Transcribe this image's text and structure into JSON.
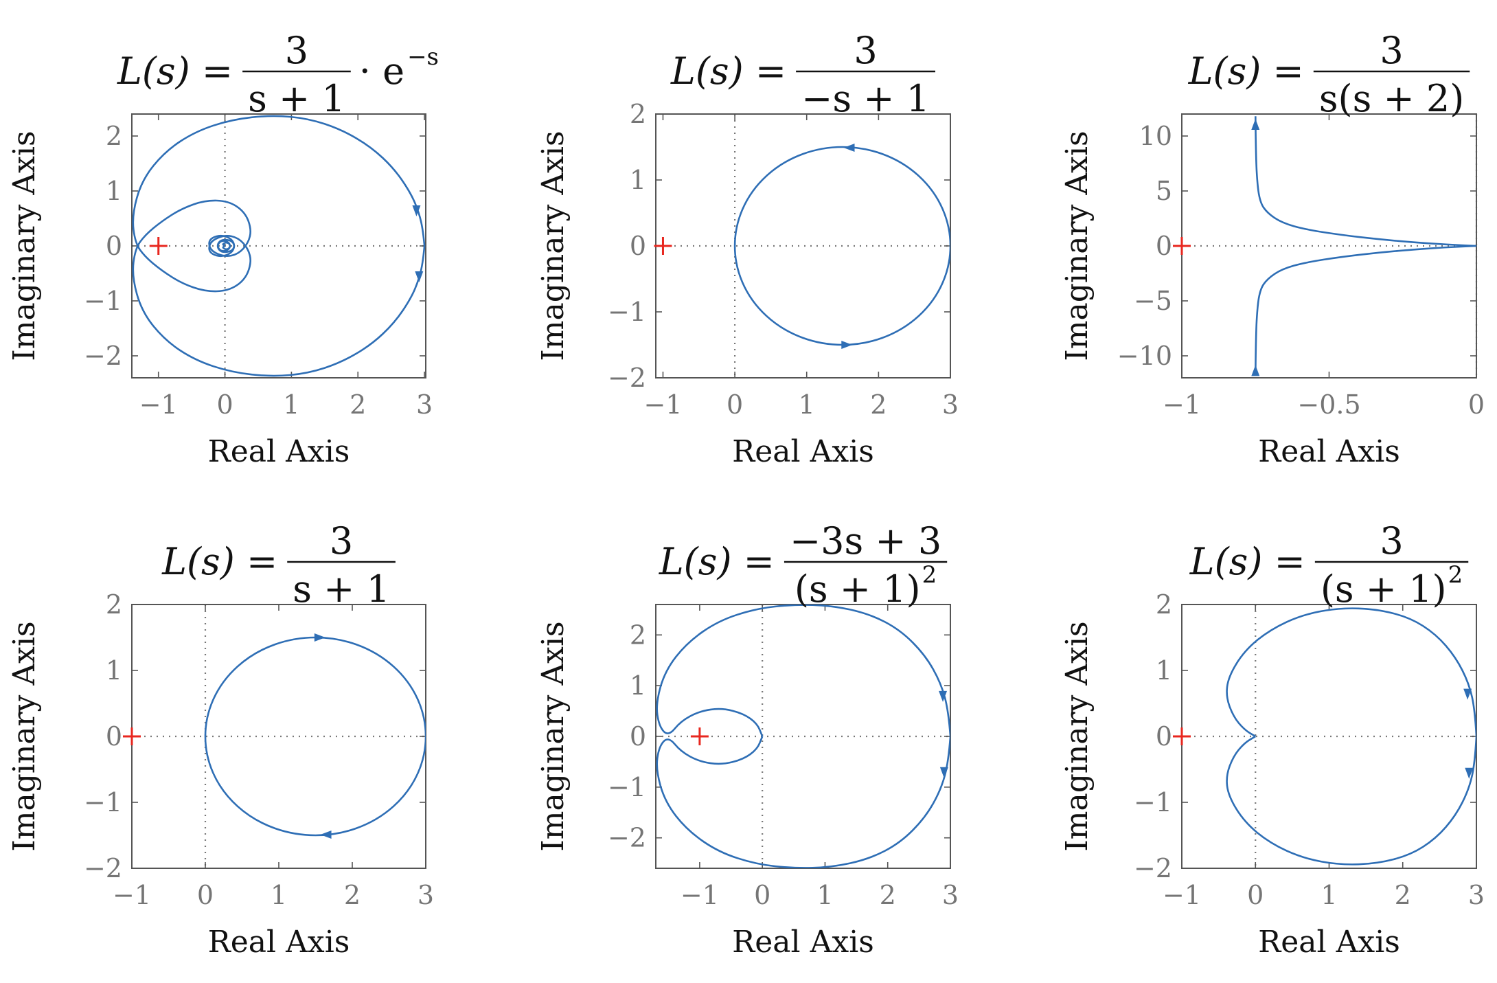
{
  "colors": {
    "curve": "#2e6eb5",
    "critical_point": "#e8271f",
    "axes": "#555555",
    "tick_text": "#757575",
    "reference_line": "#777777"
  },
  "labels": {
    "x": "Real Axis",
    "y": "Imaginary Axis"
  },
  "chart_data": [
    {
      "type": "line",
      "title": "L(s) = 3/(s+1) · e^{-s}",
      "title_parts": {
        "lhs": "L(s) =",
        "num": "3",
        "den": "s + 1",
        "suffix": "· e",
        "sup": "−s"
      },
      "xlabel": "Real Axis",
      "ylabel": "Imaginary Axis",
      "xlim": [
        -1.4,
        3.02
      ],
      "ylim": [
        -2.4,
        2.4
      ],
      "xticks": [
        -1,
        0,
        1,
        2,
        3
      ],
      "xtick_labels": [
        "−1",
        "0",
        "1",
        "2",
        "3"
      ],
      "yticks": [
        -2,
        -1,
        0,
        1,
        2
      ],
      "ytick_labels": [
        "−2",
        "−1",
        "0",
        "1",
        "2"
      ],
      "critical_point": [
        -1,
        0
      ],
      "series": [
        {
          "values": [
            [
              3,
              0
            ],
            [
              2.98,
              -0.28
            ],
            [
              2.92,
              -0.6
            ],
            [
              2.8,
              -0.95
            ],
            [
              2.55,
              -1.4
            ],
            [
              2.2,
              -1.8
            ],
            [
              1.75,
              -2.12
            ],
            [
              1.25,
              -2.32
            ],
            [
              0.7,
              -2.38
            ],
            [
              0.1,
              -2.3
            ],
            [
              -0.45,
              -2.08
            ],
            [
              -0.9,
              -1.72
            ],
            [
              -1.25,
              -1.2
            ],
            [
              -1.4,
              -0.55
            ],
            [
              -1.35,
              -0.05
            ],
            [
              -1.2,
              0.2
            ],
            [
              -0.95,
              0.45
            ],
            [
              -0.65,
              0.68
            ],
            [
              -0.3,
              0.83
            ],
            [
              0.05,
              0.82
            ],
            [
              0.3,
              0.62
            ],
            [
              0.4,
              0.3
            ],
            [
              0.35,
              0.05
            ],
            [
              0.2,
              -0.15
            ],
            [
              0.0,
              -0.2
            ],
            [
              -0.2,
              -0.1
            ],
            [
              -0.25,
              0.05
            ],
            [
              -0.2,
              0.15
            ],
            [
              -0.05,
              0.2
            ],
            [
              0.1,
              0.13
            ],
            [
              0.15,
              0.0
            ],
            [
              0.1,
              -0.1
            ],
            [
              -0.05,
              -0.12
            ],
            [
              -0.12,
              -0.02
            ],
            [
              -0.08,
              0.08
            ],
            [
              0.0,
              0.1
            ],
            [
              0.07,
              0.05
            ],
            [
              0.08,
              -0.03
            ],
            [
              0.02,
              -0.07
            ],
            [
              -0.04,
              -0.03
            ],
            [
              0.0,
              0.0
            ]
          ]
        },
        {
          "values": [
            [
              3,
              0
            ],
            [
              2.98,
              0.28
            ],
            [
              2.92,
              0.6
            ],
            [
              2.8,
              0.95
            ],
            [
              2.55,
              1.4
            ],
            [
              2.2,
              1.8
            ],
            [
              1.75,
              2.12
            ],
            [
              1.25,
              2.32
            ],
            [
              0.7,
              2.38
            ],
            [
              0.1,
              2.3
            ],
            [
              -0.45,
              2.08
            ],
            [
              -0.9,
              1.72
            ],
            [
              -1.25,
              1.2
            ],
            [
              -1.4,
              0.55
            ],
            [
              -1.35,
              0.05
            ],
            [
              -1.2,
              -0.2
            ],
            [
              -0.95,
              -0.45
            ],
            [
              -0.65,
              -0.68
            ],
            [
              -0.3,
              -0.83
            ],
            [
              0.05,
              -0.82
            ],
            [
              0.3,
              -0.62
            ],
            [
              0.4,
              -0.3
            ],
            [
              0.35,
              -0.05
            ],
            [
              0.2,
              0.15
            ],
            [
              0.0,
              0.2
            ],
            [
              -0.2,
              0.1
            ],
            [
              -0.25,
              -0.05
            ],
            [
              -0.2,
              -0.15
            ],
            [
              -0.05,
              -0.2
            ],
            [
              0.1,
              -0.13
            ],
            [
              0.15,
              0.0
            ],
            [
              0.1,
              0.1
            ],
            [
              -0.05,
              0.12
            ],
            [
              -0.12,
              0.02
            ],
            [
              -0.08,
              -0.08
            ],
            [
              0.0,
              -0.1
            ],
            [
              0.07,
              -0.05
            ],
            [
              0.08,
              0.03
            ],
            [
              0.02,
              0.07
            ],
            [
              -0.04,
              0.03
            ],
            [
              0.0,
              0.0
            ]
          ]
        }
      ],
      "arrows": [
        {
          "at": [
            2.88,
            0.65
          ],
          "dir": "down"
        },
        {
          "at": [
            2.92,
            -0.55
          ],
          "dir": "down"
        }
      ]
    },
    {
      "type": "line",
      "title": "L(s) = 3/(−s+1)",
      "title_parts": {
        "lhs": "L(s) =",
        "num": "3",
        "den": "−s + 1"
      },
      "xlabel": "Real Axis",
      "ylabel": "Imaginary Axis",
      "xlim": [
        -1.1,
        3.0
      ],
      "ylim": [
        -2,
        2
      ],
      "xticks": [
        -1,
        0,
        1,
        2,
        3
      ],
      "xtick_labels": [
        "−1",
        "0",
        "1",
        "2",
        "3"
      ],
      "yticks": [
        -2,
        -1,
        0,
        1,
        2
      ],
      "ytick_labels": [
        "−2",
        "−1",
        "0",
        "1",
        "2"
      ],
      "critical_point": [
        -1,
        0
      ],
      "series": [
        {
          "circle": {
            "center": [
              1.5,
              0
            ],
            "radius": 1.5
          }
        }
      ],
      "arrows": [
        {
          "at": [
            1.6,
            1.49
          ],
          "dir": "left"
        },
        {
          "at": [
            1.55,
            -1.5
          ],
          "dir": "right"
        }
      ]
    },
    {
      "type": "line",
      "title": "L(s) = 3/(s(s+2))",
      "title_parts": {
        "lhs": "L(s) =",
        "num": "3",
        "den": "s(s + 2)"
      },
      "xlabel": "Real Axis",
      "ylabel": "Imaginary Axis",
      "xlim": [
        -1,
        0
      ],
      "ylim": [
        -12,
        12
      ],
      "xticks": [
        -1,
        -0.5,
        0
      ],
      "xtick_labels": [
        "−1",
        "−0.5",
        "0"
      ],
      "yticks": [
        -10,
        -5,
        0,
        5,
        10
      ],
      "ytick_labels": [
        "−10",
        "−5",
        "0",
        "5",
        "10"
      ],
      "critical_point": [
        -1,
        0
      ],
      "series": [
        {
          "values": [
            [
              -0.75,
              11.8
            ],
            [
              -0.749,
              9.0
            ],
            [
              -0.745,
              6.0
            ],
            [
              -0.735,
              4.0
            ],
            [
              -0.71,
              3.0
            ],
            [
              -0.66,
              2.1
            ],
            [
              -0.58,
              1.5
            ],
            [
              -0.46,
              1.0
            ],
            [
              -0.33,
              0.6
            ],
            [
              -0.2,
              0.3
            ],
            [
              -0.1,
              0.12
            ],
            [
              0,
              0
            ]
          ]
        },
        {
          "values": [
            [
              -0.75,
              -11.8
            ],
            [
              -0.749,
              -9.0
            ],
            [
              -0.745,
              -6.0
            ],
            [
              -0.735,
              -4.0
            ],
            [
              -0.71,
              -3.0
            ],
            [
              -0.66,
              -2.1
            ],
            [
              -0.58,
              -1.5
            ],
            [
              -0.46,
              -1.0
            ],
            [
              -0.33,
              -0.6
            ],
            [
              -0.2,
              -0.3
            ],
            [
              -0.1,
              -0.12
            ],
            [
              0,
              0
            ]
          ]
        }
      ],
      "arrows": [
        {
          "at": [
            -0.75,
            11.0
          ],
          "dir": "up"
        },
        {
          "at": [
            -0.75,
            -11.4
          ],
          "dir": "up"
        }
      ]
    },
    {
      "type": "line",
      "title": "L(s) = 3/(s+1)",
      "title_parts": {
        "lhs": "L(s) =",
        "num": "3",
        "den": "s + 1"
      },
      "xlabel": "Real Axis",
      "ylabel": "Imaginary Axis",
      "xlim": [
        -1,
        3
      ],
      "ylim": [
        -2,
        2
      ],
      "xticks": [
        -1,
        0,
        1,
        2,
        3
      ],
      "xtick_labels": [
        "−1",
        "0",
        "1",
        "2",
        "3"
      ],
      "yticks": [
        -2,
        -1,
        0,
        1,
        2
      ],
      "ytick_labels": [
        "−2",
        "−1",
        "0",
        "1",
        "2"
      ],
      "critical_point": [
        -1,
        0
      ],
      "series": [
        {
          "circle": {
            "center": [
              1.5,
              0
            ],
            "radius": 1.5
          }
        }
      ],
      "arrows": [
        {
          "at": [
            1.55,
            1.5
          ],
          "dir": "right"
        },
        {
          "at": [
            1.65,
            -1.49
          ],
          "dir": "left"
        }
      ]
    },
    {
      "type": "line",
      "title": "L(s) = (−3s+3)/(s+1)^2",
      "title_parts": {
        "lhs": "L(s) =",
        "num": "−3s + 3",
        "den": "(s + 1)",
        "den_sup": "2"
      },
      "xlabel": "Real Axis",
      "ylabel": "Imaginary Axis",
      "xlim": [
        -1.7,
        3.0
      ],
      "ylim": [
        -2.6,
        2.6
      ],
      "xticks": [
        -1,
        0,
        1,
        2,
        3
      ],
      "xtick_labels": [
        "−1",
        "0",
        "1",
        "2",
        "3"
      ],
      "yticks": [
        -2,
        -1,
        0,
        1,
        2
      ],
      "ytick_labels": [
        "−2",
        "−1",
        "0",
        "1",
        "2"
      ],
      "critical_point": [
        -1,
        0
      ],
      "series": [
        {
          "values": [
            [
              3,
              0
            ],
            [
              2.97,
              0.5
            ],
            [
              2.85,
              1.05
            ],
            [
              2.6,
              1.6
            ],
            [
              2.2,
              2.1
            ],
            [
              1.7,
              2.42
            ],
            [
              1.1,
              2.58
            ],
            [
              0.5,
              2.6
            ],
            [
              -0.1,
              2.52
            ],
            [
              -0.7,
              2.28
            ],
            [
              -1.2,
              1.85
            ],
            [
              -1.55,
              1.3
            ],
            [
              -1.7,
              0.65
            ],
            [
              -1.65,
              0.2
            ],
            [
              -1.5,
              0.0
            ],
            [
              -1.3,
              0.3
            ],
            [
              -1.0,
              0.5
            ],
            [
              -0.65,
              0.56
            ],
            [
              -0.3,
              0.45
            ],
            [
              -0.08,
              0.25
            ],
            [
              0,
              0
            ]
          ]
        },
        {
          "values": [
            [
              3,
              0
            ],
            [
              2.97,
              -0.5
            ],
            [
              2.85,
              -1.05
            ],
            [
              2.6,
              -1.6
            ],
            [
              2.2,
              -2.1
            ],
            [
              1.7,
              -2.42
            ],
            [
              1.1,
              -2.58
            ],
            [
              0.5,
              -2.6
            ],
            [
              -0.1,
              -2.52
            ],
            [
              -0.7,
              -2.28
            ],
            [
              -1.2,
              -1.85
            ],
            [
              -1.55,
              -1.3
            ],
            [
              -1.7,
              -0.65
            ],
            [
              -1.65,
              -0.2
            ],
            [
              -1.5,
              0.0
            ],
            [
              -1.3,
              -0.3
            ],
            [
              -1.0,
              -0.5
            ],
            [
              -0.65,
              -0.56
            ],
            [
              -0.3,
              -0.45
            ],
            [
              -0.08,
              -0.25
            ],
            [
              0,
              0
            ]
          ]
        }
      ],
      "arrows": [
        {
          "at": [
            2.88,
            0.8
          ],
          "dir": "down"
        },
        {
          "at": [
            2.9,
            -0.7
          ],
          "dir": "down"
        }
      ]
    },
    {
      "type": "line",
      "title": "L(s) = 3/(s+1)^2",
      "title_parts": {
        "lhs": "L(s) =",
        "num": "3",
        "den": "(s + 1)",
        "den_sup": "2"
      },
      "xlabel": "Real Axis",
      "ylabel": "Imaginary Axis",
      "xlim": [
        -1,
        3
      ],
      "ylim": [
        -2,
        2
      ],
      "xticks": [
        -1,
        0,
        1,
        2,
        3
      ],
      "xtick_labels": [
        "−1",
        "0",
        "1",
        "2",
        "3"
      ],
      "yticks": [
        -2,
        -1,
        0,
        1,
        2
      ],
      "ytick_labels": [
        "−2",
        "−1",
        "0",
        "1",
        "2"
      ],
      "critical_point": [
        -1,
        0
      ],
      "series": [
        {
          "values": [
            [
              3,
              0
            ],
            [
              2.98,
              0.4
            ],
            [
              2.9,
              0.8
            ],
            [
              2.72,
              1.2
            ],
            [
              2.45,
              1.55
            ],
            [
              2.1,
              1.8
            ],
            [
              1.65,
              1.93
            ],
            [
              1.15,
              1.95
            ],
            [
              0.65,
              1.85
            ],
            [
              0.2,
              1.62
            ],
            [
              -0.15,
              1.3
            ],
            [
              -0.37,
              0.9
            ],
            [
              -0.4,
              0.6
            ],
            [
              -0.3,
              0.3
            ],
            [
              -0.15,
              0.1
            ],
            [
              0,
              0
            ]
          ]
        },
        {
          "values": [
            [
              3,
              0
            ],
            [
              2.98,
              -0.4
            ],
            [
              2.9,
              -0.8
            ],
            [
              2.72,
              -1.2
            ],
            [
              2.45,
              -1.55
            ],
            [
              2.1,
              -1.8
            ],
            [
              1.65,
              -1.93
            ],
            [
              1.15,
              -1.95
            ],
            [
              0.65,
              -1.85
            ],
            [
              0.2,
              -1.62
            ],
            [
              -0.15,
              -1.3
            ],
            [
              -0.37,
              -0.9
            ],
            [
              -0.4,
              -0.6
            ],
            [
              -0.3,
              -0.3
            ],
            [
              -0.15,
              -0.1
            ],
            [
              0,
              0
            ]
          ]
        }
      ],
      "arrows": [
        {
          "at": [
            2.88,
            0.65
          ],
          "dir": "down"
        },
        {
          "at": [
            2.9,
            -0.55
          ],
          "dir": "down"
        }
      ]
    }
  ]
}
